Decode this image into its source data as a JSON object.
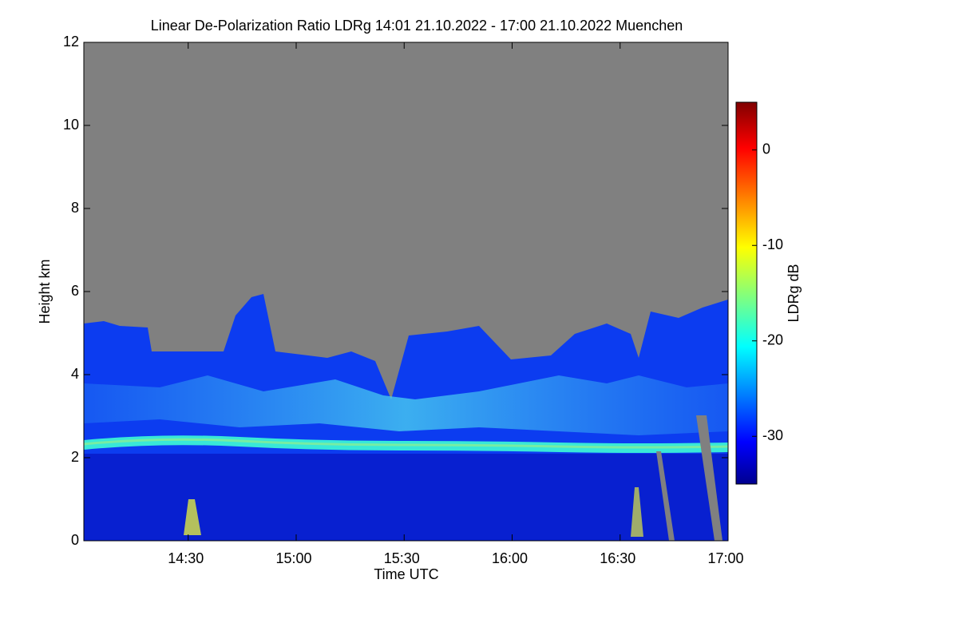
{
  "chart_data": {
    "type": "heatmap",
    "title": "Linear De-Polarization Ratio LDRg   14:01 21.10.2022 - 17:00 21.10.2022 Muenchen",
    "x_label": "Time UTC",
    "y_label": "Height km",
    "colorbar_label": "LDRg dB",
    "xlim": [
      841,
      1020
    ],
    "xticks": [
      {
        "value": 870,
        "label": "14:30"
      },
      {
        "value": 900,
        "label": "15:00"
      },
      {
        "value": 930,
        "label": "15:30"
      },
      {
        "value": 960,
        "label": "16:00"
      },
      {
        "value": 990,
        "label": "16:30"
      },
      {
        "value": 1020,
        "label": "17:00"
      }
    ],
    "ylim": [
      0,
      12
    ],
    "yticks": [
      0,
      2,
      4,
      6,
      8,
      10,
      12
    ],
    "clim": [
      -35,
      5
    ],
    "cticks": [
      0,
      -10,
      -20,
      -30
    ],
    "colormap": "jet"
  }
}
